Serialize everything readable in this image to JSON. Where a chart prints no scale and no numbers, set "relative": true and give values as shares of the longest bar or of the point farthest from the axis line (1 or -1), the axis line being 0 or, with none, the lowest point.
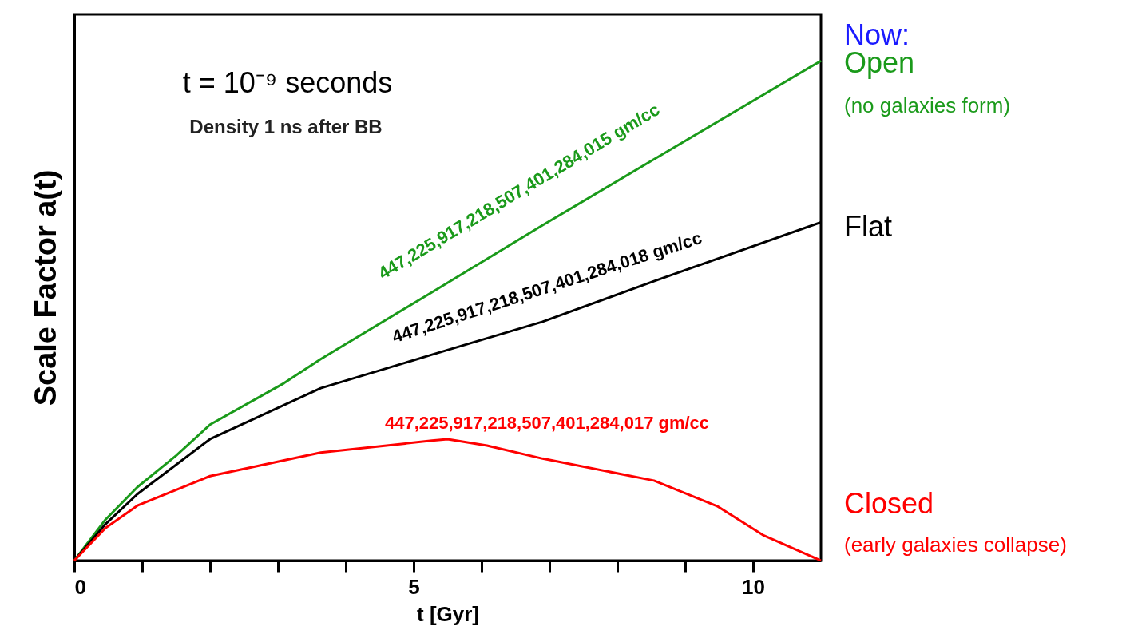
{
  "chart_data": {
    "type": "line",
    "relative": true,
    "xlabel": "t [Gyr]",
    "ylabel": "Scale Factor a(t)",
    "xlim": [
      0,
      11
    ],
    "xticks": [
      0,
      {
        "value": 1,
        "label": null
      },
      {
        "value": 2,
        "label": null
      },
      {
        "value": 3,
        "label": null
      },
      {
        "value": 4,
        "label": null
      },
      5,
      {
        "value": 6,
        "label": null
      },
      {
        "value": 7,
        "label": null
      },
      {
        "value": 8,
        "label": null
      },
      {
        "value": 9,
        "label": null
      },
      10
    ],
    "grid": false,
    "marker": "none",
    "line_style": "solid",
    "series": [
      {
        "name": "Open",
        "color": "#1a9a1a",
        "x": [
          0,
          0.46,
          0.93,
          1.5,
          2.0,
          3.09,
          3.63,
          5.27,
          6.9,
          8.54,
          11
        ],
        "values": [
          0,
          0.082,
          0.147,
          0.21,
          0.272,
          0.355,
          0.403,
          0.537,
          0.671,
          0.803,
          1.0
        ]
      },
      {
        "name": "Flat",
        "color": "#000000",
        "x": [
          0,
          0.46,
          0.93,
          2.0,
          3.63,
          5.27,
          6.9,
          8.54,
          11
        ],
        "values": [
          0,
          0.073,
          0.133,
          0.243,
          0.345,
          0.412,
          0.478,
          0.559,
          0.677
        ]
      },
      {
        "name": "Closed",
        "color": "#ff0000",
        "x": [
          0,
          0.46,
          0.93,
          2.0,
          3.63,
          5.27,
          5.5,
          6.08,
          6.9,
          8.54,
          9.47,
          10.16,
          11
        ],
        "values": [
          0,
          0.065,
          0.11,
          0.169,
          0.216,
          0.24,
          0.243,
          0.23,
          0.204,
          0.16,
          0.109,
          0.05,
          0
        ]
      }
    ],
    "annotations": [
      "447,225,917,218,507,401,284,015 gm/cc",
      "447,225,917,218,507,401,284,018 gm/cc",
      "447,225,917,218,507,401,284,017 gm/cc",
      "t = 10⁻⁹ seconds",
      "Density 1 ns after BB",
      "Now:",
      "(no galaxies form)",
      "(early galaxies collapse)"
    ]
  }
}
